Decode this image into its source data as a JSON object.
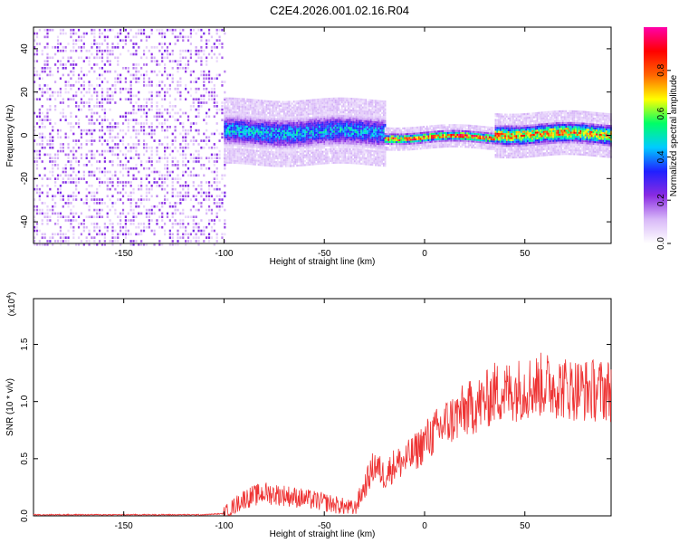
{
  "figure": {
    "title": "C2E4.2026.001.02.16.R04"
  },
  "chart_data": [
    {
      "type": "heatmap",
      "title": "C2E4.2026.001.02.16.R04",
      "xlabel": "Height of straight line (km)",
      "ylabel": "Frequency (Hz)",
      "xlim": [
        -195,
        93
      ],
      "ylim": [
        -50,
        50
      ],
      "xticks": [
        -150,
        -100,
        -50,
        0,
        50
      ],
      "yticks": [
        -40,
        -20,
        0,
        20,
        40
      ],
      "colorbar": {
        "label": "Normalized spectral amplitude",
        "range": [
          0,
          1
        ],
        "ticks": [
          "0.0",
          "0.2",
          "0.4",
          "0.6",
          "0.8"
        ],
        "colormap": [
          "#ffffff",
          "#d8b8f8",
          "#8a2be2",
          "#2020ff",
          "#00ccff",
          "#00ff66",
          "#ffff00",
          "#ff6600",
          "#ff0000",
          "#ff00aa"
        ]
      },
      "regions": [
        {
          "x_range": [
            -195,
            -100
          ],
          "freq_center": 0,
          "freq_spread": 50,
          "max_amplitude": 0.25
        },
        {
          "x_range": [
            -100,
            -20
          ],
          "freq_center": 2,
          "freq_spread": 6,
          "max_amplitude": 0.5
        },
        {
          "x_range": [
            -20,
            35
          ],
          "freq_center": -0.5,
          "freq_spread": 2,
          "max_amplitude": 0.95
        },
        {
          "x_range": [
            35,
            93
          ],
          "freq_center": 1,
          "freq_spread": 4,
          "max_amplitude": 0.85
        }
      ]
    },
    {
      "type": "line",
      "xlabel": "Height of straight line (km)",
      "ylabel": "SNR (10 * v/v)",
      "yscale_label": "(x10^4)",
      "xlim": [
        -195,
        93
      ],
      "ylim": [
        0,
        1.9
      ],
      "xticks": [
        -150,
        -100,
        -50,
        0,
        50
      ],
      "yticks": [
        "0.0",
        "0.5",
        "1.0",
        "1.5"
      ],
      "series": [
        {
          "color": "#ee3333",
          "x": [
            -195,
            -150,
            -110,
            -100,
            -90,
            -80,
            -70,
            -60,
            -50,
            -40,
            -35,
            -30,
            -25,
            -20,
            -15,
            -10,
            -5,
            0,
            10,
            20,
            30,
            35,
            40,
            50,
            60,
            70,
            80,
            93
          ],
          "y": [
            0.01,
            0.01,
            0.01,
            0.02,
            0.15,
            0.2,
            0.18,
            0.15,
            0.12,
            0.08,
            0.06,
            0.25,
            0.45,
            0.35,
            0.45,
            0.48,
            0.55,
            0.65,
            0.8,
            0.92,
            1.0,
            1.08,
            1.08,
            1.12,
            1.15,
            1.12,
            1.1,
            1.1
          ]
        }
      ]
    }
  ]
}
